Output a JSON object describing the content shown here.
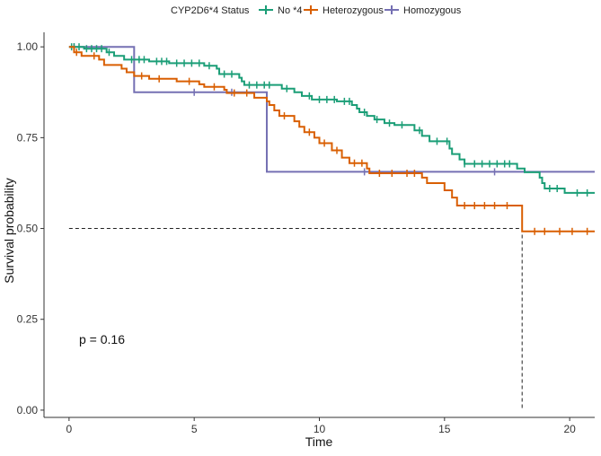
{
  "chart_data": {
    "type": "line",
    "subtype": "kaplan-meier",
    "title": "",
    "xlabel": "Time",
    "ylabel": "Survival probability",
    "xlim": [
      -1,
      21
    ],
    "ylim": [
      -0.02,
      1.04
    ],
    "xticks": [
      0,
      5,
      10,
      15,
      20
    ],
    "xtick_labels": [
      "0",
      "5",
      "10",
      "15",
      "20"
    ],
    "yticks": [
      0,
      0.25,
      0.5,
      0.75,
      1.0
    ],
    "ytick_labels": [
      "0.00",
      "0.25",
      "0.50",
      "0.75",
      "1.00"
    ],
    "legend_title": "CYP2D6*4 Status",
    "legend_position": "top",
    "annotation": "p = 0.16",
    "median_line": {
      "y": 0.5,
      "x_end": 18.1
    },
    "series": [
      {
        "name": "No *4",
        "color": "#1b9e77",
        "steps": [
          [
            0,
            1.0
          ],
          [
            0.6,
            0.995
          ],
          [
            1.5,
            0.985
          ],
          [
            1.8,
            0.975
          ],
          [
            2.2,
            0.965
          ],
          [
            3.2,
            0.96
          ],
          [
            4.0,
            0.955
          ],
          [
            5.4,
            0.948
          ],
          [
            5.9,
            0.94
          ],
          [
            6.0,
            0.925
          ],
          [
            6.8,
            0.915
          ],
          [
            6.9,
            0.905
          ],
          [
            7.0,
            0.895
          ],
          [
            8.5,
            0.885
          ],
          [
            9.0,
            0.875
          ],
          [
            9.3,
            0.865
          ],
          [
            9.7,
            0.855
          ],
          [
            10.7,
            0.85
          ],
          [
            11.3,
            0.84
          ],
          [
            11.5,
            0.83
          ],
          [
            11.6,
            0.82
          ],
          [
            11.9,
            0.81
          ],
          [
            12.2,
            0.8
          ],
          [
            12.6,
            0.79
          ],
          [
            13.0,
            0.785
          ],
          [
            13.8,
            0.77
          ],
          [
            14.1,
            0.755
          ],
          [
            14.4,
            0.74
          ],
          [
            15.2,
            0.72
          ],
          [
            15.3,
            0.705
          ],
          [
            15.6,
            0.69
          ],
          [
            15.8,
            0.678
          ],
          [
            17.9,
            0.665
          ],
          [
            18.2,
            0.655
          ],
          [
            18.8,
            0.64
          ],
          [
            18.9,
            0.625
          ],
          [
            19.0,
            0.61
          ],
          [
            19.8,
            0.598
          ]
        ],
        "x_end": 21,
        "censor": [
          0.1,
          0.2,
          0.4,
          0.7,
          0.9,
          1.1,
          1.3,
          1.6,
          2.5,
          2.8,
          3.0,
          3.5,
          3.7,
          3.9,
          4.3,
          4.6,
          4.9,
          5.2,
          5.6,
          6.2,
          6.5,
          7.2,
          7.5,
          7.8,
          8.0,
          8.7,
          9.6,
          10.0,
          10.3,
          10.6,
          11.0,
          11.2,
          11.8,
          12.3,
          12.8,
          13.3,
          14.0,
          14.7,
          15.1,
          15.8,
          16.2,
          16.5,
          16.8,
          17.1,
          17.4,
          17.6,
          19.2,
          19.5,
          20.3,
          20.7
        ]
      },
      {
        "name": "Heterozygous",
        "color": "#d95f02",
        "steps": [
          [
            0,
            1.0
          ],
          [
            0.2,
            0.985
          ],
          [
            0.5,
            0.975
          ],
          [
            1.2,
            0.965
          ],
          [
            1.4,
            0.95
          ],
          [
            2.1,
            0.94
          ],
          [
            2.3,
            0.93
          ],
          [
            2.6,
            0.92
          ],
          [
            3.2,
            0.912
          ],
          [
            4.3,
            0.905
          ],
          [
            5.2,
            0.897
          ],
          [
            5.4,
            0.89
          ],
          [
            6.2,
            0.882
          ],
          [
            6.3,
            0.873
          ],
          [
            7.4,
            0.86
          ],
          [
            7.9,
            0.85
          ],
          [
            8.0,
            0.84
          ],
          [
            8.2,
            0.825
          ],
          [
            8.4,
            0.81
          ],
          [
            9.0,
            0.795
          ],
          [
            9.2,
            0.78
          ],
          [
            9.4,
            0.765
          ],
          [
            9.8,
            0.75
          ],
          [
            10.0,
            0.735
          ],
          [
            10.5,
            0.715
          ],
          [
            10.9,
            0.695
          ],
          [
            11.2,
            0.68
          ],
          [
            11.9,
            0.665
          ],
          [
            12.0,
            0.652
          ],
          [
            14.1,
            0.64
          ],
          [
            14.3,
            0.625
          ],
          [
            15.0,
            0.605
          ],
          [
            15.3,
            0.585
          ],
          [
            15.5,
            0.563
          ],
          [
            18.1,
            0.492
          ]
        ],
        "x_end": 21,
        "censor": [
          0.3,
          1.0,
          2.9,
          3.6,
          4.8,
          5.8,
          6.6,
          7.1,
          8.6,
          9.6,
          10.2,
          10.7,
          11.4,
          11.7,
          12.4,
          12.9,
          13.5,
          13.8,
          15.8,
          16.2,
          16.6,
          17.0,
          17.5,
          18.6,
          19.0,
          19.6,
          20.1,
          20.7
        ]
      },
      {
        "name": "Homozygous",
        "color": "#7570b3",
        "steps": [
          [
            0,
            1.0
          ],
          [
            2.6,
            0.875
          ],
          [
            7.9,
            0.656
          ]
        ],
        "x_end": 21,
        "censor": [
          0.2,
          5.0,
          6.5,
          11.8,
          17.0
        ]
      }
    ]
  }
}
